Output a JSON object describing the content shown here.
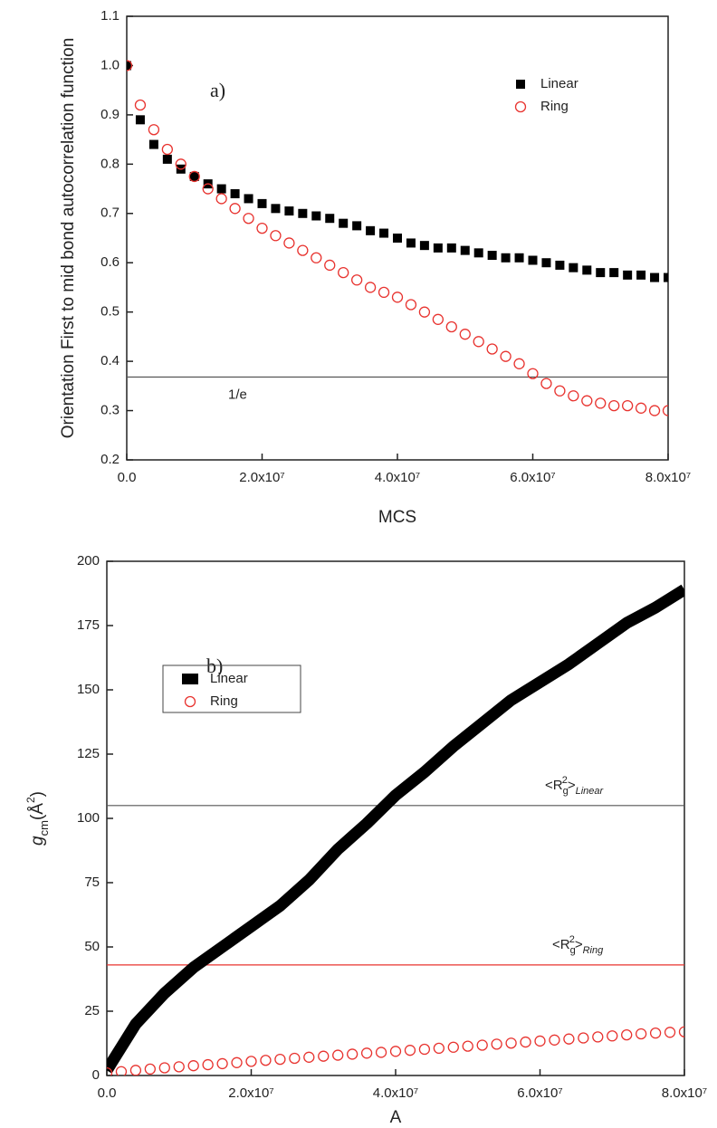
{
  "chart_data": [
    {
      "type": "scatter",
      "annotation": "a)",
      "xlabel": "MCS",
      "ylabel": "Orientation First to mid bond autocorrelation function",
      "x": [
        0,
        2000000,
        4000000,
        6000000,
        8000000,
        10000000,
        12000000,
        14000000,
        16000000,
        18000000,
        20000000,
        22000000,
        24000000,
        26000000,
        28000000,
        30000000,
        32000000,
        34000000,
        36000000,
        38000000,
        40000000,
        42000000,
        44000000,
        46000000,
        48000000,
        50000000,
        52000000,
        54000000,
        56000000,
        58000000,
        60000000,
        62000000,
        64000000,
        66000000,
        68000000,
        70000000,
        72000000,
        74000000,
        76000000,
        78000000,
        80000000
      ],
      "series": [
        {
          "name": "Linear",
          "color": "#000000",
          "marker": "square",
          "values": [
            1.0,
            0.89,
            0.84,
            0.81,
            0.79,
            0.775,
            0.76,
            0.75,
            0.74,
            0.73,
            0.72,
            0.71,
            0.705,
            0.7,
            0.695,
            0.69,
            0.68,
            0.675,
            0.665,
            0.66,
            0.65,
            0.64,
            0.635,
            0.63,
            0.63,
            0.625,
            0.62,
            0.615,
            0.61,
            0.61,
            0.605,
            0.6,
            0.595,
            0.59,
            0.585,
            0.58,
            0.58,
            0.575,
            0.575,
            0.57,
            0.57
          ]
        },
        {
          "name": "Ring",
          "color": "#e8332f",
          "marker": "circle",
          "values": [
            1.0,
            0.92,
            0.87,
            0.83,
            0.8,
            0.775,
            0.75,
            0.73,
            0.71,
            0.69,
            0.67,
            0.655,
            0.64,
            0.625,
            0.61,
            0.595,
            0.58,
            0.565,
            0.55,
            0.54,
            0.53,
            0.515,
            0.5,
            0.485,
            0.47,
            0.455,
            0.44,
            0.425,
            0.41,
            0.395,
            0.375,
            0.355,
            0.34,
            0.33,
            0.32,
            0.315,
            0.31,
            0.31,
            0.305,
            0.3,
            0.3
          ]
        }
      ],
      "reference_lines": [
        {
          "value": 0.368,
          "color": "#555555",
          "label": [
            "1/e"
          ]
        }
      ],
      "xlim": [
        0,
        80000000
      ],
      "xticks": [
        {
          "value": 0,
          "label": "0.0"
        },
        {
          "value": 20000000,
          "label": "2.0x10⁷"
        },
        {
          "value": 40000000,
          "label": "4.0x10⁷"
        },
        {
          "value": 60000000,
          "label": "6.0x10⁷"
        },
        {
          "value": 80000000,
          "label": "8.0x10⁷"
        }
      ],
      "ylim": [
        0.2,
        1.1
      ],
      "yticks": [
        0.2,
        0.3,
        0.4,
        0.5,
        0.6,
        0.7,
        0.8,
        0.9,
        {
          "value": 1.0,
          "label": "1.0"
        },
        1.1
      ],
      "legend": "upper right",
      "legend_frame": false
    },
    {
      "type": "scatter",
      "annotation": "b)",
      "xlabel": "A",
      "ylabel": [
        "g",
        "cm",
        "(Å",
        "2",
        ")"
      ],
      "series": [
        {
          "name": "Linear",
          "color": "#000000",
          "marker": "line",
          "x": [
            0,
            4000000,
            8000000,
            12000000,
            16000000,
            20000000,
            24000000,
            28000000,
            32000000,
            36000000,
            40000000,
            44000000,
            48000000,
            52000000,
            56000000,
            60000000,
            64000000,
            68000000,
            72000000,
            76000000,
            80000000
          ],
          "values": [
            2,
            20,
            32,
            42,
            50,
            58,
            66,
            76,
            88,
            98,
            109,
            118,
            128,
            137,
            146,
            153,
            160,
            168,
            176,
            182,
            189
          ]
        },
        {
          "name": "Ring",
          "color": "#e8332f",
          "marker": "circle",
          "x": [
            0,
            2000000,
            4000000,
            6000000,
            8000000,
            10000000,
            12000000,
            14000000,
            16000000,
            18000000,
            20000000,
            22000000,
            24000000,
            26000000,
            28000000,
            30000000,
            32000000,
            34000000,
            36000000,
            38000000,
            40000000,
            42000000,
            44000000,
            46000000,
            48000000,
            50000000,
            52000000,
            54000000,
            56000000,
            58000000,
            60000000,
            62000000,
            64000000,
            66000000,
            68000000,
            70000000,
            72000000,
            74000000,
            76000000,
            78000000,
            80000000
          ],
          "values": [
            1,
            1.5,
            2,
            2.5,
            3,
            3.4,
            3.8,
            4.2,
            4.6,
            5,
            5.5,
            5.9,
            6.3,
            6.7,
            7.1,
            7.5,
            7.9,
            8.3,
            8.7,
            9,
            9.4,
            9.8,
            10.2,
            10.6,
            11,
            11.4,
            11.8,
            12.2,
            12.6,
            13,
            13.4,
            13.8,
            14.2,
            14.6,
            15,
            15.4,
            15.8,
            16.2,
            16.5,
            16.8,
            17
          ]
        }
      ],
      "reference_lines": [
        {
          "value": 105,
          "color": "#555555",
          "label": [
            "<R",
            "g",
            "2",
            ">",
            "Linear"
          ]
        },
        {
          "value": 43,
          "color": "#e8332f",
          "label": [
            "<R",
            "g",
            "2",
            ">",
            "Ring"
          ]
        }
      ],
      "xlim": [
        0,
        80000000
      ],
      "xticks": [
        {
          "value": 0,
          "label": "0.0"
        },
        {
          "value": 20000000,
          "label": "2.0x10⁷"
        },
        {
          "value": 40000000,
          "label": "4.0x10⁷"
        },
        {
          "value": 60000000,
          "label": "6.0x10⁷"
        },
        {
          "value": 80000000,
          "label": "8.0x10⁷"
        }
      ],
      "ylim": [
        0,
        200
      ],
      "yticks": [
        0,
        25,
        50,
        75,
        100,
        125,
        150,
        175,
        200
      ],
      "legend": "upper left",
      "legend_frame": true
    }
  ]
}
